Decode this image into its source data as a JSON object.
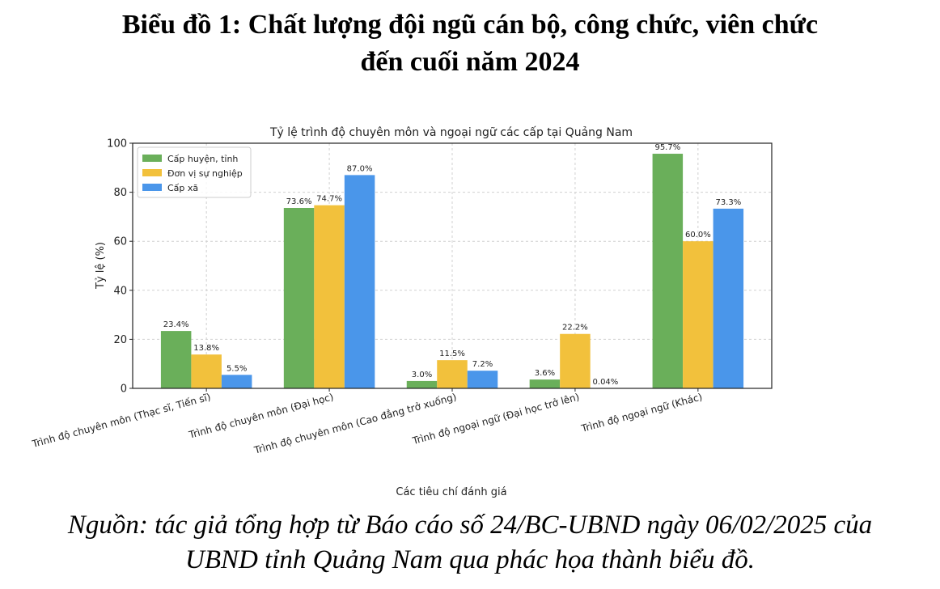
{
  "document": {
    "title_line1": "Biểu đồ 1: Chất lượng đội ngũ cán bộ, công chức, viên chức",
    "title_line2": "đến cuối năm 2024",
    "source_line1": "Nguồn: tác giả tổng hợp từ Báo cáo số 24/BC-UBND ngày 06/02/2025 của",
    "source_line2": "UBND tỉnh Quảng Nam qua phác họa thành biểu đồ."
  },
  "chart_data": {
    "type": "bar",
    "title": "Tỷ lệ trình độ chuyên môn và ngoại ngữ các cấp tại Quảng Nam",
    "xlabel": "Các tiêu chí đánh giá",
    "ylabel": "Tỷ lệ (%)",
    "ylim": [
      0,
      100
    ],
    "yticks": [
      "0",
      "20",
      "40",
      "60",
      "80",
      "100"
    ],
    "grid": true,
    "legend_position": "top-left",
    "categories": [
      "Trình độ chuyên môn (Thạc sĩ, Tiến sĩ)",
      "Trình độ chuyên môn (Đại học)",
      "Trình độ chuyên môn (Cao đẳng trở xuống)",
      "Trình độ ngoại ngữ (Đại học trở lên)",
      "Trình độ ngoại ngữ (Khác)"
    ],
    "series": [
      {
        "name": "Cấp huyện, tỉnh",
        "color": "#6aaf5a",
        "values": [
          23.4,
          73.6,
          3.0,
          3.6,
          95.7
        ],
        "labels": [
          "23.4%",
          "73.6%",
          "3.0%",
          "3.6%",
          "95.7%"
        ]
      },
      {
        "name": "Đơn vị sự nghiệp",
        "color": "#f2c13c",
        "values": [
          13.8,
          74.7,
          11.5,
          22.2,
          60.0
        ],
        "labels": [
          "13.8%",
          "74.7%",
          "11.5%",
          "22.2%",
          "60.0%"
        ]
      },
      {
        "name": "Cấp xã",
        "color": "#4a96ea",
        "values": [
          5.5,
          87.0,
          7.2,
          0.04,
          73.3
        ],
        "labels": [
          "5.5%",
          "87.0%",
          "7.2%",
          "0.04%",
          "73.3%"
        ]
      }
    ]
  }
}
